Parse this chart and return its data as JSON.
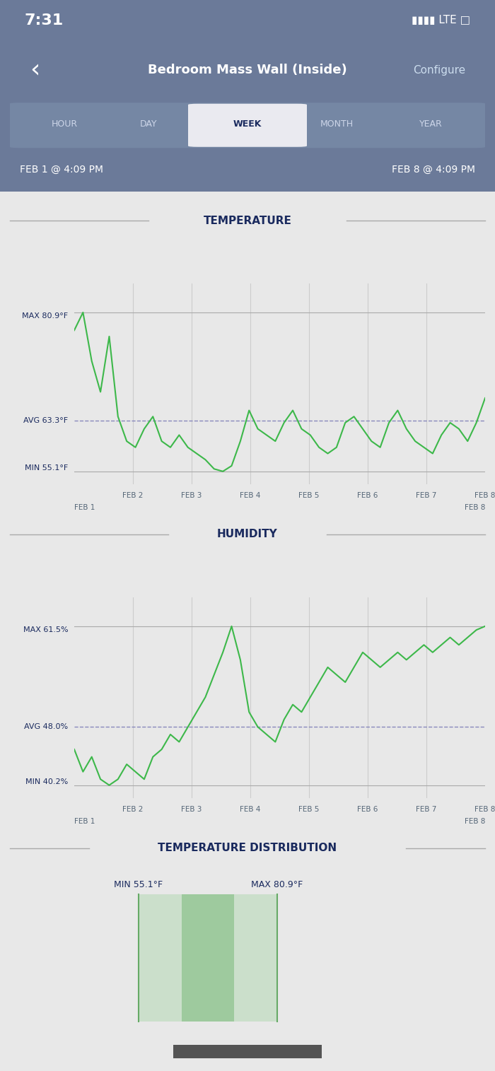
{
  "title": "Bedroom Mass Wall (Inside)",
  "time": "7:31",
  "date_range_left": "FEB 1 @ 4:09 PM",
  "date_range_right": "FEB 8 @ 4:09 PM",
  "nav_items": [
    "HOUR",
    "DAY",
    "WEEK",
    "MONTH",
    "YEAR"
  ],
  "nav_selected": "WEEK",
  "header_bg": "#6b7a99",
  "chart_bg": "#e8e8e8",
  "line_color": "#3db84a",
  "avg_line_color": "#8888bb",
  "label_color": "#1a2a5e",
  "temp_title": "TEMPERATURE",
  "temp_max_label": "MAX 80.9°F",
  "temp_avg_label": "AVG 63.3°F",
  "temp_min_label": "MIN 55.1°F",
  "temp_max": 80.9,
  "temp_avg": 63.3,
  "temp_min": 55.1,
  "humidity_title": "HUMIDITY",
  "humidity_max_label": "MAX 61.5%",
  "humidity_avg_label": "AVG 48.0%",
  "humidity_min_label": "MIN 40.2%",
  "humidity_max": 61.5,
  "humidity_avg": 48.0,
  "humidity_min": 40.2,
  "dist_title": "TEMPERATURE DISTRIBUTION",
  "dist_min_label": "MIN 55.1°F",
  "dist_max_label": "MAX 80.9°F",
  "x_tick_labels": [
    "FEB 2",
    "FEB 3",
    "FEB 4",
    "FEB 5",
    "FEB 6",
    "FEB 7",
    "FEB 8"
  ],
  "x_bottom_left": "FEB 1",
  "x_bottom_right": "FEB 8",
  "temp_data": [
    78,
    80.9,
    73,
    68,
    77,
    64,
    60,
    59,
    62,
    64,
    60,
    59,
    61,
    59,
    58,
    57,
    55.5,
    55.1,
    56,
    60,
    65,
    62,
    61,
    60,
    63,
    65,
    62,
    61,
    59,
    58,
    59,
    63,
    64,
    62,
    60,
    59,
    63,
    65,
    62,
    60,
    59,
    58,
    61,
    63,
    62,
    60,
    63,
    67
  ],
  "humidity_data": [
    45,
    42,
    44,
    41,
    40.2,
    41,
    43,
    42,
    41,
    44,
    45,
    47,
    46,
    48,
    50,
    52,
    55,
    58,
    61.5,
    57,
    50,
    48,
    47,
    46,
    49,
    51,
    50,
    52,
    54,
    56,
    55,
    54,
    56,
    58,
    57,
    56,
    57,
    58,
    57,
    58,
    59,
    58,
    59,
    60,
    59,
    60,
    61,
    61.5
  ]
}
